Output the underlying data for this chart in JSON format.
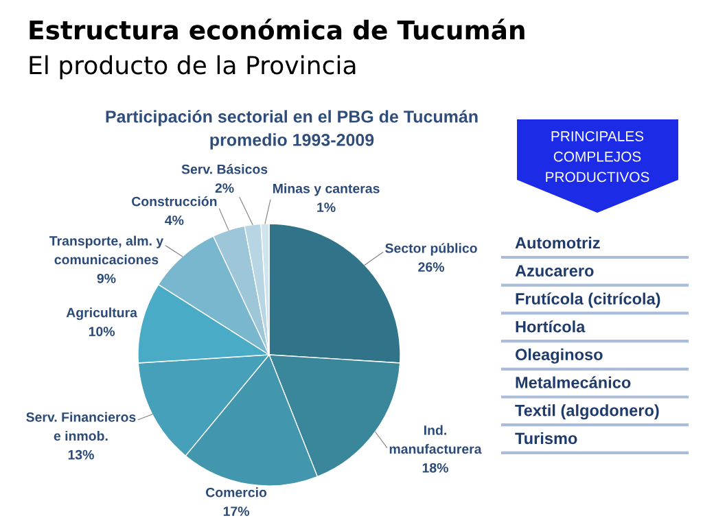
{
  "chart_data": [
    {
      "type": "pie",
      "title": "Participación sectorial en el PBG de Tucumán",
      "subtitle": "promedio 1993-2009",
      "annotations": [
        "Estructura económica de Tucumán",
        "El producto de la Provincia"
      ],
      "categories": [
        "Sector público",
        "Ind.\nmanufacturera",
        "Comercio",
        "Serv. Financieros\ne inmob.",
        "Agricultura",
        "Transporte, alm. y\ncomunicaciones",
        "Construcción",
        "Serv. Básicos",
        "Minas y canteras"
      ],
      "values": [
        26,
        18,
        17,
        13,
        10,
        9,
        4,
        2,
        1
      ],
      "value_labels": [
        "26%",
        "18%",
        "17%",
        "13%",
        "10%",
        "9%",
        "4%",
        "2%",
        "1%"
      ],
      "colors": [
        "#31748a",
        "#3a879b",
        "#4297af",
        "#46a0b9",
        "#4aabc7",
        "#79b7cf",
        "#9dc7d9",
        "#b7d5e3",
        "#d0e4ee"
      ]
    },
    {
      "type": "other",
      "title": "PRINCIPALES\nCOMPLEJOS\nPRODUCTIVOS",
      "annotations": [
        "Automotriz",
        "Azucarero",
        "Frutícola (citrícola)",
        "Hortícola",
        "Oleaginoso",
        "Metalmecánico",
        "Textil (algodonero)",
        "Turismo"
      ]
    }
  ]
}
